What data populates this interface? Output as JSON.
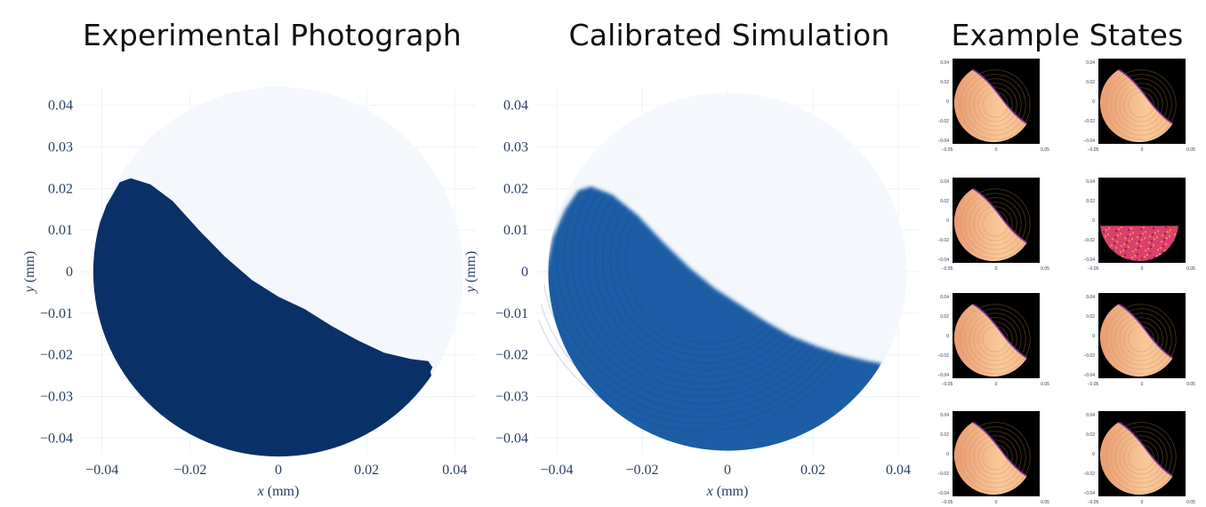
{
  "titles": {
    "left": "Experimental Photograph",
    "middle": "Calibrated Simulation",
    "right": "Example States"
  },
  "colors": {
    "navy": "#0a3068",
    "sim_blue": "#1a5da6",
    "background_disc": "#f4f8fc",
    "tick_text": "#2a3f5f",
    "thumb_bg": "#000000",
    "thumb_fill": "#f8c08a"
  },
  "chart_data": [
    {
      "type": "heatmap",
      "title": "Experimental Photograph",
      "xlabel": "x (mm)",
      "ylabel": "y (mm)",
      "xlim": [
        -0.045,
        0.045
      ],
      "ylim": [
        -0.044,
        0.044
      ],
      "xticks": [
        -0.04,
        -0.02,
        0,
        0.02,
        0.04
      ],
      "yticks": [
        0.04,
        0.03,
        0.02,
        0.01,
        0,
        -0.01,
        -0.02,
        -0.03,
        -0.04
      ],
      "xtick_labels": [
        "−0.04",
        "−0.02",
        "0",
        "0.02",
        "0.04"
      ],
      "ytick_labels": [
        "0.04",
        "0.03",
        "0.02",
        "0.01",
        "0",
        "−0.01",
        "−0.02",
        "−0.03",
        "−0.04"
      ],
      "disc_radius": 0.042,
      "region_boundary": [
        [
          -0.0425,
          0.002
        ],
        [
          -0.0415,
          0.009
        ],
        [
          -0.039,
          0.016
        ],
        [
          -0.036,
          0.0215
        ],
        [
          -0.0335,
          0.0225
        ],
        [
          -0.029,
          0.021
        ],
        [
          -0.024,
          0.017
        ],
        [
          -0.018,
          0.01
        ],
        [
          -0.012,
          0.0035
        ],
        [
          -0.006,
          -0.002
        ],
        [
          0.0,
          -0.006
        ],
        [
          0.006,
          -0.009
        ],
        [
          0.012,
          -0.013
        ],
        [
          0.018,
          -0.0165
        ],
        [
          0.024,
          -0.0195
        ],
        [
          0.03,
          -0.021
        ],
        [
          0.034,
          -0.0215
        ],
        [
          0.035,
          -0.023
        ],
        [
          0.0345,
          -0.024
        ]
      ],
      "grid": true
    },
    {
      "type": "heatmap",
      "title": "Calibrated Simulation",
      "xlabel": "x (mm)",
      "ylabel": "y (mm)",
      "xlim": [
        -0.045,
        0.045
      ],
      "ylim": [
        -0.044,
        0.044
      ],
      "xticks": [
        -0.04,
        -0.02,
        0,
        0.02,
        0.04
      ],
      "yticks": [
        0.04,
        0.03,
        0.02,
        0.01,
        0,
        -0.01,
        -0.02,
        -0.03,
        -0.04
      ],
      "xtick_labels": [
        "−0.04",
        "−0.02",
        "0",
        "0.02",
        "0.04"
      ],
      "ytick_labels": [
        "0.04",
        "0.03",
        "0.02",
        "0.01",
        "0",
        "−0.01",
        "−0.02",
        "−0.03",
        "−0.04"
      ],
      "disc_radius": 0.042,
      "region_boundary": [
        [
          -0.0425,
          0.0
        ],
        [
          -0.041,
          0.008
        ],
        [
          -0.038,
          0.015
        ],
        [
          -0.035,
          0.0195
        ],
        [
          -0.032,
          0.0205
        ],
        [
          -0.027,
          0.0185
        ],
        [
          -0.021,
          0.0135
        ],
        [
          -0.015,
          0.007
        ],
        [
          -0.009,
          0.001
        ],
        [
          -0.003,
          -0.004
        ],
        [
          0.003,
          -0.008
        ],
        [
          0.009,
          -0.012
        ],
        [
          0.015,
          -0.0155
        ],
        [
          0.021,
          -0.018
        ],
        [
          0.027,
          -0.02
        ],
        [
          0.033,
          -0.0215
        ],
        [
          0.036,
          -0.022
        ]
      ],
      "grid": true
    },
    {
      "type": "heatmap",
      "title": "Example States",
      "panels": 8,
      "grid_layout": [
        4,
        2
      ],
      "xticks": [
        -0.05,
        0,
        0.05
      ],
      "yticks": [
        0.04,
        0.02,
        0,
        -0.02,
        -0.04
      ],
      "xtick_labels": [
        "−0.05",
        "0",
        "0.05"
      ],
      "ytick_labels": [
        "0.04",
        "0.02",
        "0",
        "−0.02",
        "−0.04"
      ],
      "states": [
        "crescent",
        "crescent",
        "crescent",
        "noisy-bottom",
        "crescent",
        "crescent",
        "crescent",
        "crescent"
      ]
    }
  ]
}
